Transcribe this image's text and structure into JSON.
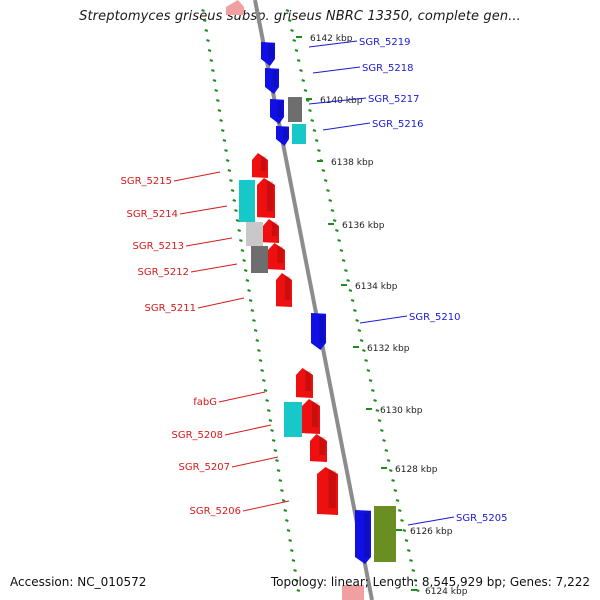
{
  "title": "Streptomyces griseus subsp. griseus NBRC 13350, complete gen...",
  "footer": {
    "accession": "Accession: NC_010572",
    "summary": "Topology: linear; Length: 8,545,929 bp; Genes: 7,222"
  },
  "colors": {
    "axis": "#8c8c8c",
    "tick": "#1e8c1e",
    "forward_label": "#1a1ad6",
    "reverse_label": "#d61a1a",
    "gene_blue": "#1010e6",
    "gene_red": "#ee1010",
    "gene_cyan": "#18c8c8",
    "gene_gray": "#6e6e6e",
    "gene_lightgray": "#c8c8c8",
    "gene_olive": "#6b8e23",
    "gene_pink": "#f0a0a0"
  },
  "kbp_ticks": [
    "6142 kbp",
    "6140 kbp",
    "6138 kbp",
    "6136 kbp",
    "6134 kbp",
    "6132 kbp",
    "6130 kbp",
    "6128 kbp",
    "6126 kbp",
    "6124 kbp"
  ],
  "forward_genes": [
    "SGR_5219",
    "SGR_5218",
    "SGR_5217",
    "SGR_5216",
    "SGR_5210",
    "SGR_5205"
  ],
  "reverse_genes": [
    "SGR_5215",
    "SGR_5214",
    "SGR_5213",
    "SGR_5212",
    "SGR_5211",
    "fabG",
    "SGR_5208",
    "SGR_5207",
    "SGR_5206"
  ]
}
